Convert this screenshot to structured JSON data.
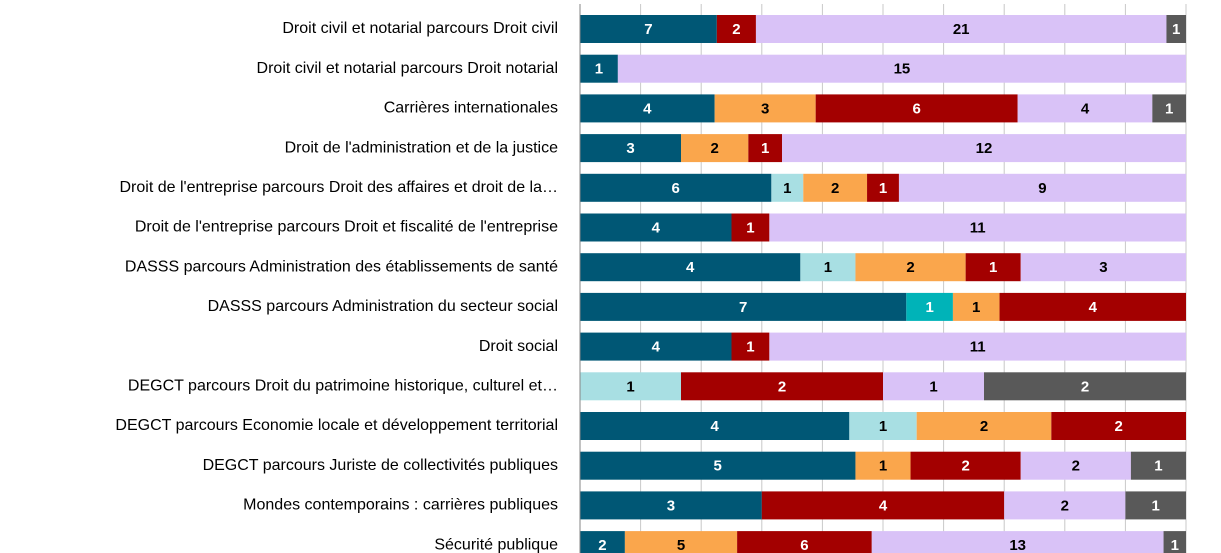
{
  "chart_data": {
    "type": "stacked-bar-100",
    "orientation": "horizontal",
    "categories": [
      "Droit civil et notarial parcours Droit civil",
      "Droit civil et notarial parcours Droit notarial",
      "Carrières internationales",
      "Droit de l'administration et de la justice",
      "Droit de l'entreprise parcours Droit des affaires et droit de la…",
      "Droit de l'entreprise parcours Droit et fiscalité de l'entreprise",
      "DASSS parcours Administration des établissements de santé",
      "DASSS parcours Administration du secteur social",
      "Droit social",
      "DEGCT parcours Droit du patrimoine historique, culturel et…",
      "DEGCT parcours Economie locale et développement territorial",
      "DEGCT parcours Juriste de collectivités publiques",
      "Mondes contemporains : carrières publiques",
      "Sécurité publique"
    ],
    "series": [
      {
        "color": "#005775",
        "values": [
          7,
          1,
          4,
          3,
          6,
          4,
          4,
          7,
          4,
          null,
          4,
          5,
          3,
          2
        ]
      },
      {
        "color": "#a8dfe3",
        "values": [
          null,
          null,
          null,
          null,
          1,
          null,
          1,
          null,
          null,
          1,
          1,
          null,
          null,
          null
        ]
      },
      {
        "color": "#00b3b8",
        "values": [
          null,
          null,
          null,
          null,
          null,
          null,
          null,
          1,
          null,
          null,
          null,
          null,
          null,
          null
        ]
      },
      {
        "color": "#faa64c",
        "values": [
          null,
          null,
          3,
          2,
          2,
          null,
          2,
          1,
          null,
          null,
          2,
          1,
          null,
          5
        ]
      },
      {
        "color": "#a30000",
        "values": [
          2,
          null,
          6,
          1,
          1,
          1,
          1,
          4,
          1,
          2,
          2,
          2,
          4,
          6
        ]
      },
      {
        "color": "#d9c2f7",
        "values": [
          21,
          15,
          4,
          12,
          9,
          11,
          3,
          null,
          11,
          1,
          null,
          2,
          2,
          13
        ]
      },
      {
        "color": "#595959",
        "values": [
          1,
          null,
          1,
          null,
          null,
          null,
          null,
          null,
          null,
          2,
          null,
          1,
          1,
          1
        ]
      }
    ],
    "xlim": [
      0,
      100
    ],
    "xticks": [
      0,
      10,
      20,
      30,
      40,
      50,
      60,
      70,
      80,
      90,
      100
    ],
    "grid": true
  }
}
